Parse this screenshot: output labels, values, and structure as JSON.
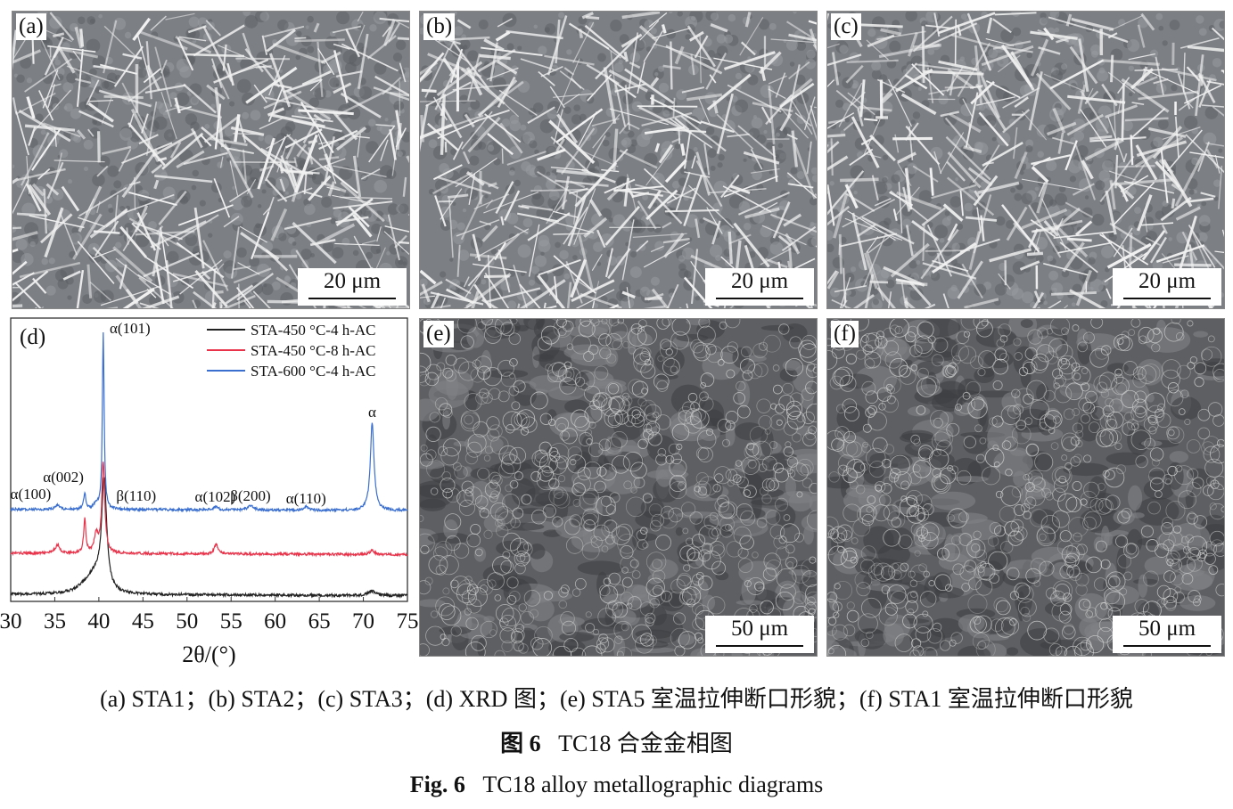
{
  "panels": [
    {
      "id": "a",
      "label": "(a)",
      "scale": "20 μm",
      "kind": "optical"
    },
    {
      "id": "b",
      "label": "(b)",
      "scale": "20 μm",
      "kind": "optical"
    },
    {
      "id": "c",
      "label": "(c)",
      "scale": "20 μm",
      "kind": "optical"
    },
    {
      "id": "e",
      "label": "(e)",
      "scale": "50 μm",
      "kind": "sem"
    },
    {
      "id": "f",
      "label": "(f)",
      "scale": "50 μm",
      "kind": "sem"
    }
  ],
  "chart_data": {
    "type": "line",
    "panel_label": "(d)",
    "xlabel": "2θ/(°)",
    "ylabel": "",
    "xlim": [
      30,
      75
    ],
    "ylim": [
      0,
      100
    ],
    "xticks": [
      30,
      35,
      40,
      45,
      50,
      55,
      60,
      65,
      70,
      75
    ],
    "grid": false,
    "legend_position": "top-right",
    "series": [
      {
        "name": "STA-450 °C-4 h-AC",
        "color": "#222222",
        "baseline": 2.5,
        "peaks": [
          [
            38.6,
            3,
            1.2
          ],
          [
            39.6,
            5,
            0.8
          ],
          [
            40.6,
            39,
            0.35
          ],
          [
            71,
            1.5,
            0.5
          ]
        ]
      },
      {
        "name": "STA-450 °C-8 h-AC",
        "color": "#e8334a",
        "baseline": 17,
        "peaks": [
          [
            35.3,
            3,
            0.3
          ],
          [
            38.4,
            12,
            0.15
          ],
          [
            39.7,
            6.5,
            0.25
          ],
          [
            40.5,
            32,
            0.2
          ],
          [
            53.3,
            3.5,
            0.25
          ],
          [
            71,
            1.5,
            0.3
          ]
        ]
      },
      {
        "name": "STA-600 °C-4 h-AC",
        "color": "#3a6fd0",
        "baseline": 32.5,
        "peaks": [
          [
            35.3,
            1.5,
            0.3
          ],
          [
            38.4,
            5.5,
            0.15
          ],
          [
            39.7,
            2,
            0.3
          ],
          [
            40.5,
            62,
            0.12
          ],
          [
            53.3,
            1,
            0.3
          ],
          [
            57.2,
            1.5,
            0.4
          ],
          [
            63.5,
            1.2,
            0.3
          ],
          [
            71,
            31,
            0.25
          ]
        ]
      }
    ],
    "annotations": [
      {
        "text": "α(101)",
        "x": 40.5
      },
      {
        "text": "α(002)",
        "x": 38.4
      },
      {
        "text": "α(100)",
        "x": 35.3
      },
      {
        "text": "β(110)",
        "x": 41.2
      },
      {
        "text": "α(102)",
        "x": 53.3
      },
      {
        "text": "β(200)",
        "x": 57.2
      },
      {
        "text": "α(110)",
        "x": 63.5
      },
      {
        "text": "α",
        "x": 71
      }
    ]
  },
  "caption": {
    "line1": "(a) STA1；(b) STA2；(c) STA3；(d) XRD 图；(e) STA5 室温拉伸断口形貌；(f) STA1 室温拉伸断口形貌",
    "cn_label": "图 6",
    "cn_title": "TC18 合金金相图",
    "en_label": "Fig. 6",
    "en_title": "TC18 alloy metallographic diagrams"
  }
}
